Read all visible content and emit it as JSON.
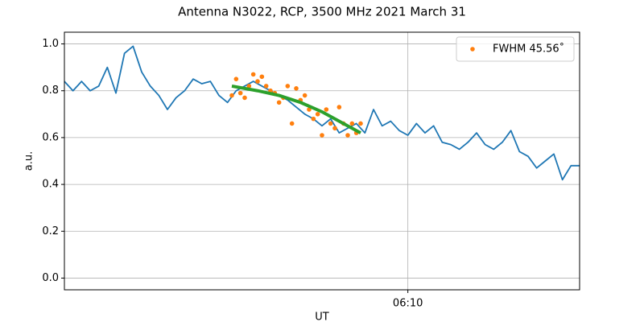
{
  "chart_data": {
    "type": "line",
    "title": "Antenna N3022, RCP, 3500 MHz 2021 March 31",
    "xlabel": "UT",
    "ylabel": "a.u.",
    "xlim": [
      362,
      374
    ],
    "xticks": [
      {
        "value": 370,
        "label": "06:10"
      }
    ],
    "ylim": [
      -0.05,
      1.05
    ],
    "yticks": [
      {
        "value": 0,
        "label": "0.0"
      },
      0.2,
      0.4,
      0.6,
      0.8,
      {
        "value": 1,
        "label": "1.0"
      }
    ],
    "grid": true,
    "legend": "upper right",
    "series": [
      {
        "mark": "line",
        "color": "#1f77b4",
        "x": [
          362,
          362.2,
          362.4,
          362.6,
          362.8,
          363,
          363.2,
          363.4,
          363.6,
          363.8,
          364,
          364.2,
          364.4,
          364.6,
          364.8,
          365,
          365.2,
          365.4,
          365.6,
          365.8,
          366,
          366.2,
          366.4,
          366.6,
          366.8,
          367,
          367.2,
          367.4,
          367.6,
          367.8,
          368,
          368.2,
          368.4,
          368.6,
          368.8,
          369,
          369.2,
          369.4,
          369.6,
          369.8,
          370,
          370.2,
          370.4,
          370.6,
          370.8,
          371,
          371.2,
          371.4,
          371.6,
          371.8,
          372,
          372.2,
          372.4,
          372.6,
          372.8,
          373,
          373.2,
          373.4,
          373.6,
          373.8,
          374
        ],
        "values": [
          0.84,
          0.8,
          0.84,
          0.8,
          0.82,
          0.9,
          0.79,
          0.96,
          0.99,
          0.88,
          0.82,
          0.78,
          0.72,
          0.77,
          0.8,
          0.85,
          0.83,
          0.84,
          0.78,
          0.75,
          0.8,
          0.82,
          0.84,
          0.82,
          0.8,
          0.78,
          0.76,
          0.73,
          0.7,
          0.68,
          0.65,
          0.68,
          0.62,
          0.64,
          0.66,
          0.62,
          0.72,
          0.65,
          0.67,
          0.63,
          0.61,
          0.66,
          0.62,
          0.65,
          0.58,
          0.57,
          0.55,
          0.58,
          0.62,
          0.57,
          0.55,
          0.58,
          0.63,
          0.54,
          0.52,
          0.47,
          0.5,
          0.53,
          0.42,
          0.48,
          0.48
        ]
      },
      {
        "mark": "point",
        "name": "FWHM 45.56˚",
        "color": "#ff7f0e",
        "x": [
          365.9,
          366,
          366.1,
          366.2,
          366.3,
          366.4,
          366.5,
          366.6,
          366.7,
          366.8,
          366.9,
          367,
          367.1,
          367.2,
          367.3,
          367.4,
          367.5,
          367.6,
          367.7,
          367.8,
          367.9,
          368,
          368.1,
          368.2,
          368.3,
          368.4,
          368.5,
          368.6,
          368.7,
          368.8,
          368.9
        ],
        "values": [
          0.78,
          0.85,
          0.79,
          0.77,
          0.82,
          0.87,
          0.84,
          0.86,
          0.82,
          0.8,
          0.79,
          0.75,
          0.77,
          0.82,
          0.66,
          0.81,
          0.76,
          0.78,
          0.72,
          0.68,
          0.7,
          0.61,
          0.72,
          0.66,
          0.64,
          0.73,
          0.66,
          0.61,
          0.66,
          0.62,
          0.66
        ]
      },
      {
        "mark": "line",
        "color": "#2ca02c",
        "x": [
          365.9,
          366.5,
          367,
          367.5,
          368,
          368.5,
          368.9
        ],
        "values": [
          0.82,
          0.8,
          0.78,
          0.75,
          0.71,
          0.66,
          0.62
        ]
      }
    ]
  }
}
